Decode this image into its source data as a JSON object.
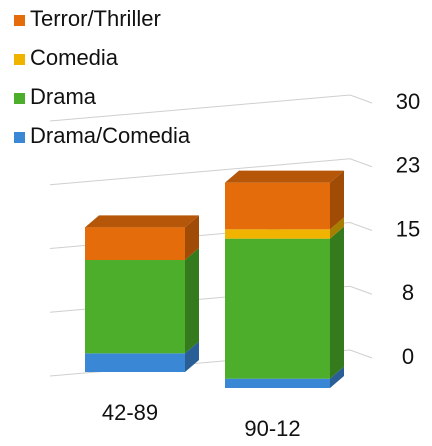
{
  "chart_data": {
    "type": "bar3d_stacked",
    "categories": [
      "42-89",
      "90-12"
    ],
    "series": [
      {
        "name": "Drama/Comedia",
        "color": "#3a87d6",
        "values": [
          2,
          1
        ]
      },
      {
        "name": "Drama",
        "color": "#4cae2a",
        "values": [
          10,
          15
        ]
      },
      {
        "name": "Comedia",
        "color": "#f0b400",
        "values": [
          0,
          1
        ]
      },
      {
        "name": "Terror/Thriller",
        "color": "#e46c0a",
        "values": [
          3.5,
          5
        ]
      }
    ],
    "ylim": [
      0,
      30
    ],
    "yticks": [
      0,
      {
        "value": 7.5,
        "label": "8"
      },
      15,
      {
        "value": 22.5,
        "label": "23"
      },
      30
    ],
    "grid": true,
    "legend": "top-left"
  }
}
